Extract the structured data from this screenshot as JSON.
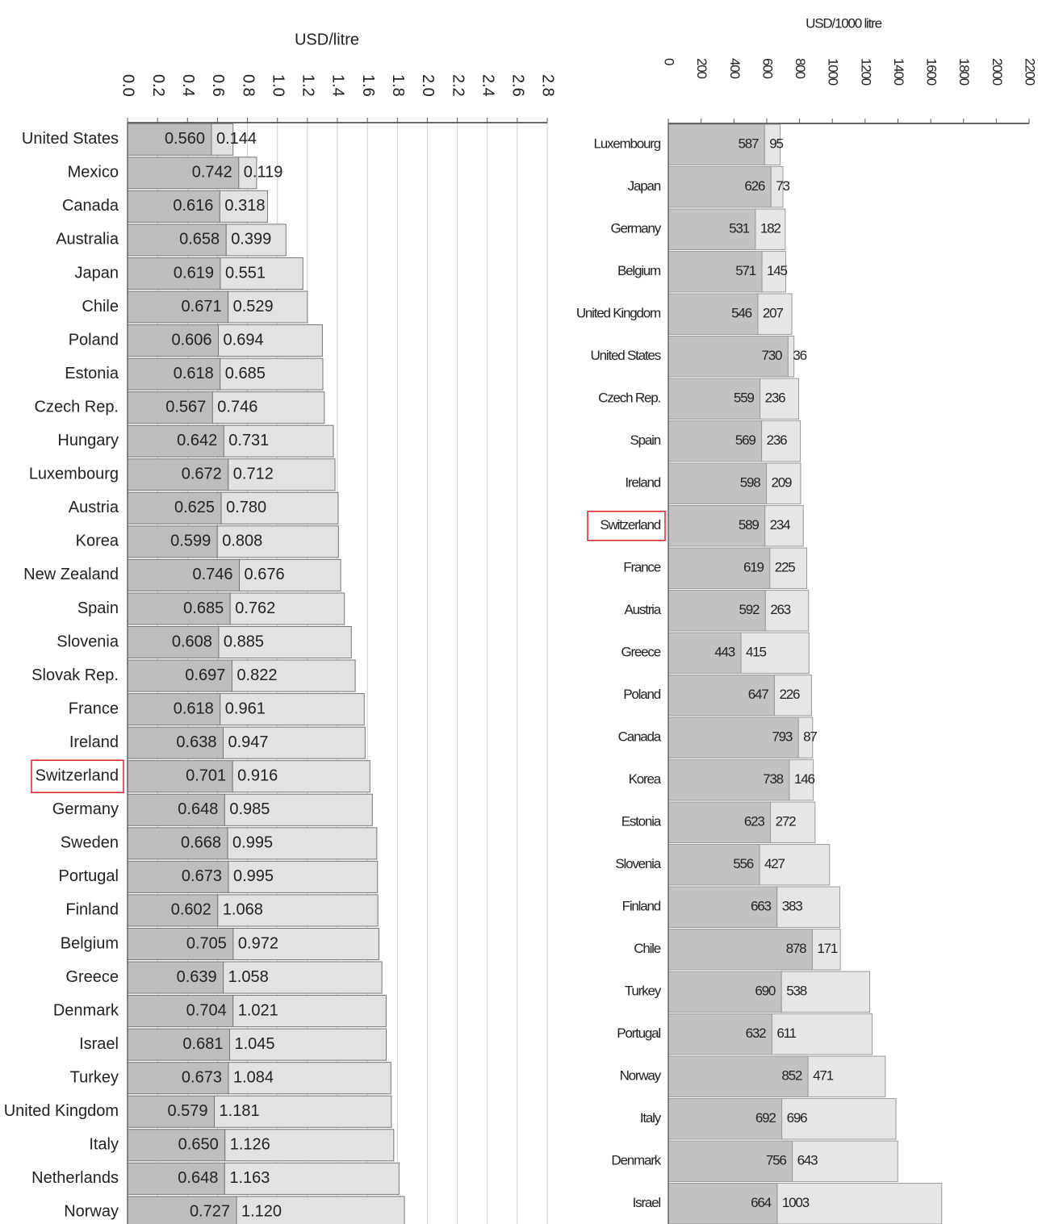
{
  "chart_data": [
    {
      "type": "stacked-barh",
      "axis_label": "USD/litre",
      "categories": [
        "United States",
        "Mexico",
        "Canada",
        "Australia",
        "Japan",
        "Chile",
        "Poland",
        "Estonia",
        "Czech Rep.",
        "Hungary",
        "Luxembourg",
        "Austria",
        "Korea",
        "New Zealand",
        "Spain",
        "Slovenia",
        "Slovak Rep.",
        "France",
        "Ireland",
        "Switzerland",
        "Germany",
        "Sweden",
        "Portugal",
        "Finland",
        "Belgium",
        "Greece",
        "Denmark",
        "Israel",
        "Turkey",
        "United Kingdom",
        "Italy",
        "Netherlands",
        "Norway"
      ],
      "series": [
        {
          "color": "#bdbdbd",
          "values": [
            0.56,
            0.742,
            0.616,
            0.658,
            0.619,
            0.671,
            0.606,
            0.618,
            0.567,
            0.642,
            0.672,
            0.625,
            0.599,
            0.746,
            0.685,
            0.608,
            0.697,
            0.618,
            0.638,
            0.701,
            0.648,
            0.668,
            0.673,
            0.602,
            0.705,
            0.639,
            0.704,
            0.681,
            0.673,
            0.579,
            0.65,
            0.648,
            0.727
          ],
          "value_labels": [
            "0.560",
            "0.742",
            "0.616",
            "0.658",
            "0.619",
            "0.671",
            "0.606",
            "0.618",
            "0.567",
            "0.642",
            "0.672",
            "0.625",
            "0.599",
            "0.746",
            "0.685",
            "0.608",
            "0.697",
            "0.618",
            "0.638",
            "0.701",
            "0.648",
            "0.668",
            "0.673",
            "0.602",
            "0.705",
            "0.639",
            "0.704",
            "0.681",
            "0.673",
            "0.579",
            "0.650",
            "0.648",
            "0.727"
          ]
        },
        {
          "color": "#e2e2e2",
          "values": [
            0.144,
            0.119,
            0.318,
            0.399,
            0.551,
            0.529,
            0.694,
            0.685,
            0.746,
            0.731,
            0.712,
            0.78,
            0.808,
            0.676,
            0.762,
            0.885,
            0.822,
            0.961,
            0.947,
            0.916,
            0.985,
            0.995,
            0.995,
            1.068,
            0.972,
            1.058,
            1.021,
            1.045,
            1.084,
            1.181,
            1.126,
            1.163,
            1.12
          ],
          "value_labels": [
            "0.144",
            "0.119",
            "0.318",
            "0.399",
            "0.551",
            "0.529",
            "0.694",
            "0.685",
            "0.746",
            "0.731",
            "0.712",
            "0.780",
            "0.808",
            "0.676",
            "0.762",
            "0.885",
            "0.822",
            "0.961",
            "0.947",
            "0.916",
            "0.985",
            "0.995",
            "0.995",
            "1.068",
            "0.972",
            "1.058",
            "1.021",
            "1.045",
            "1.084",
            "1.181",
            "1.126",
            "1.163",
            "1.120"
          ]
        }
      ],
      "xlim": [
        0,
        2.8
      ],
      "xticks": [
        {
          "value": 0,
          "label": "0.0"
        },
        0.2,
        0.4,
        0.6,
        0.8,
        {
          "value": 1,
          "label": "1.0"
        },
        1.2,
        1.4,
        1.6,
        1.8,
        {
          "value": 2,
          "label": "2.0"
        },
        2.2,
        2.4,
        2.6,
        2.8
      ],
      "grid": true,
      "highlight": "Switzerland"
    },
    {
      "type": "stacked-barh",
      "axis_label": "USD/1000 litre",
      "categories": [
        "Luxembourg",
        "Japan",
        "Germany",
        "Belgium",
        "United Kingdom",
        "United States",
        "Czech Rep.",
        "Spain",
        "Ireland",
        "Switzerland",
        "France",
        "Austria",
        "Greece",
        "Poland",
        "Canada",
        "Korea",
        "Estonia",
        "Slovenia",
        "Finland",
        "Chile",
        "Turkey",
        "Portugal",
        "Norway",
        "Italy",
        "Denmark",
        "Israel"
      ],
      "series": [
        {
          "color": "#c2c2c2",
          "values": [
            587,
            626,
            531,
            571,
            546,
            730,
            559,
            569,
            598,
            589,
            619,
            592,
            443,
            647,
            793,
            738,
            623,
            556,
            663,
            878,
            690,
            632,
            852,
            692,
            756,
            664
          ]
        },
        {
          "color": "#e6e6e6",
          "values": [
            95,
            73,
            182,
            145,
            207,
            36,
            236,
            236,
            209,
            234,
            225,
            263,
            415,
            226,
            87,
            146,
            272,
            427,
            383,
            171,
            538,
            611,
            471,
            696,
            643,
            1003
          ]
        }
      ],
      "xlim": [
        0,
        2200
      ],
      "xticks": [
        0,
        200,
        400,
        600,
        800,
        1000,
        1200,
        1400,
        1600,
        1800,
        2000,
        2200
      ],
      "grid": false,
      "highlight": "Switzerland"
    }
  ]
}
